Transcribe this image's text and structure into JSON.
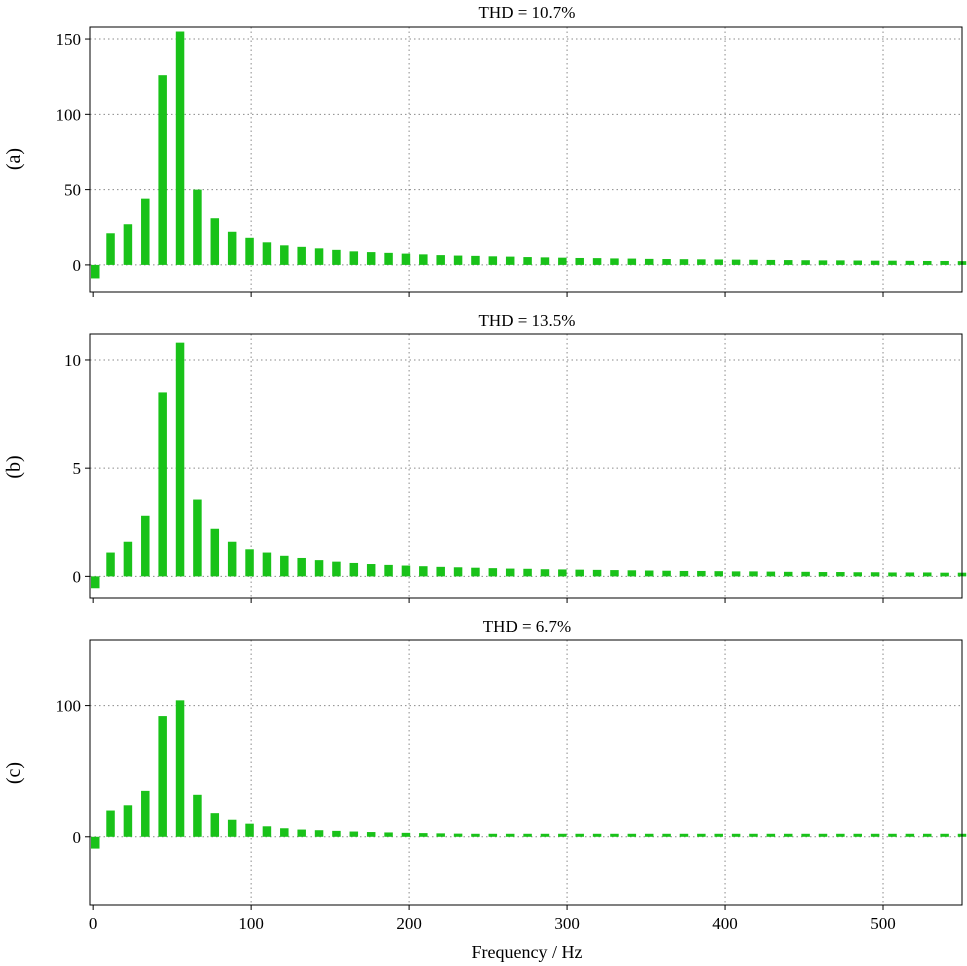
{
  "colors": {
    "bar": "#19c219",
    "grid": "#8a8a8a",
    "frame": "#000000"
  },
  "chart_data": [
    {
      "type": "bar",
      "label": "(a)",
      "title": "THD = 10.7%",
      "xlim": [
        -2,
        550
      ],
      "ylim": [
        -18,
        158
      ],
      "yticks": [
        0,
        50,
        100,
        150
      ],
      "xticks": [
        0,
        100,
        200,
        300,
        400,
        500
      ],
      "grid": true,
      "x": [
        0,
        11,
        22,
        33,
        44,
        55,
        66,
        77,
        88,
        99,
        110,
        121,
        132,
        143,
        154,
        165,
        176,
        187,
        198,
        209,
        220,
        231,
        242,
        253,
        264,
        275,
        286,
        297,
        308,
        319,
        330,
        341,
        352,
        363,
        374,
        385,
        396,
        407,
        418,
        429,
        440,
        451,
        462,
        473,
        484,
        495,
        506,
        517,
        528,
        539,
        550
      ],
      "values": [
        -9,
        21,
        27,
        44,
        126,
        155,
        50,
        31,
        22,
        18,
        15,
        13,
        12,
        11,
        10,
        9,
        8.5,
        8,
        7.5,
        7,
        6.5,
        6.2,
        6,
        5.7,
        5.5,
        5.2,
        5,
        4.8,
        4.6,
        4.5,
        4.3,
        4.2,
        4,
        3.9,
        3.8,
        3.7,
        3.6,
        3.5,
        3.4,
        3.3,
        3.2,
        3.1,
        3,
        3,
        2.9,
        2.8,
        2.8,
        2.7,
        2.6,
        2.6,
        2.5
      ]
    },
    {
      "type": "bar",
      "label": "(b)",
      "title": "THD = 13.5%",
      "xlim": [
        -2,
        550
      ],
      "ylim": [
        -1,
        11.2
      ],
      "yticks": [
        0,
        5,
        10
      ],
      "xticks": [
        0,
        100,
        200,
        300,
        400,
        500
      ],
      "grid": true,
      "x": [
        0,
        11,
        22,
        33,
        44,
        55,
        66,
        77,
        88,
        99,
        110,
        121,
        132,
        143,
        154,
        165,
        176,
        187,
        198,
        209,
        220,
        231,
        242,
        253,
        264,
        275,
        286,
        297,
        308,
        319,
        330,
        341,
        352,
        363,
        374,
        385,
        396,
        407,
        418,
        429,
        440,
        451,
        462,
        473,
        484,
        495,
        506,
        517,
        528,
        539,
        550
      ],
      "values": [
        -0.55,
        1.1,
        1.6,
        2.8,
        8.5,
        10.8,
        3.55,
        2.2,
        1.6,
        1.25,
        1.1,
        0.95,
        0.85,
        0.75,
        0.68,
        0.62,
        0.57,
        0.53,
        0.5,
        0.47,
        0.44,
        0.42,
        0.4,
        0.38,
        0.36,
        0.35,
        0.33,
        0.32,
        0.31,
        0.3,
        0.29,
        0.28,
        0.27,
        0.26,
        0.25,
        0.25,
        0.24,
        0.23,
        0.23,
        0.22,
        0.21,
        0.21,
        0.2,
        0.2,
        0.19,
        0.19,
        0.18,
        0.18,
        0.18,
        0.17,
        0.17
      ]
    },
    {
      "type": "bar",
      "label": "(c)",
      "title": "THD = 6.7%",
      "xlim": [
        -2,
        550
      ],
      "ylim": [
        -52,
        150
      ],
      "yticks": [
        0,
        100
      ],
      "xticks": [
        0,
        100,
        200,
        300,
        400,
        500
      ],
      "xtick_labels": [
        "0",
        "100",
        "200",
        "300",
        "400",
        "500"
      ],
      "xlabel": "Frequency / Hz",
      "grid": true,
      "x": [
        0,
        11,
        22,
        33,
        44,
        55,
        66,
        77,
        88,
        99,
        110,
        121,
        132,
        143,
        154,
        165,
        176,
        187,
        198,
        209,
        220,
        231,
        242,
        253,
        264,
        275,
        286,
        297,
        308,
        319,
        330,
        341,
        352,
        363,
        374,
        385,
        396,
        407,
        418,
        429,
        440,
        451,
        462,
        473,
        484,
        495,
        506,
        517,
        528,
        539,
        550
      ],
      "values": [
        -9,
        20,
        24,
        35,
        92,
        104,
        32,
        18,
        13,
        10,
        8,
        6.5,
        5.5,
        5,
        4.5,
        4,
        3.6,
        3.3,
        3,
        2.8,
        2.6,
        2.4,
        2.2,
        2.1,
        2,
        1.9,
        1.8,
        1.7,
        1.6,
        1.6,
        1.5,
        1.4,
        1.4,
        1.3,
        1.3,
        1.2,
        1.2,
        1.1,
        1.1,
        1.1,
        1,
        1,
        1,
        0.9,
        0.9,
        0.9,
        0.9,
        0.8,
        0.8,
        0.8,
        0.8
      ]
    }
  ]
}
